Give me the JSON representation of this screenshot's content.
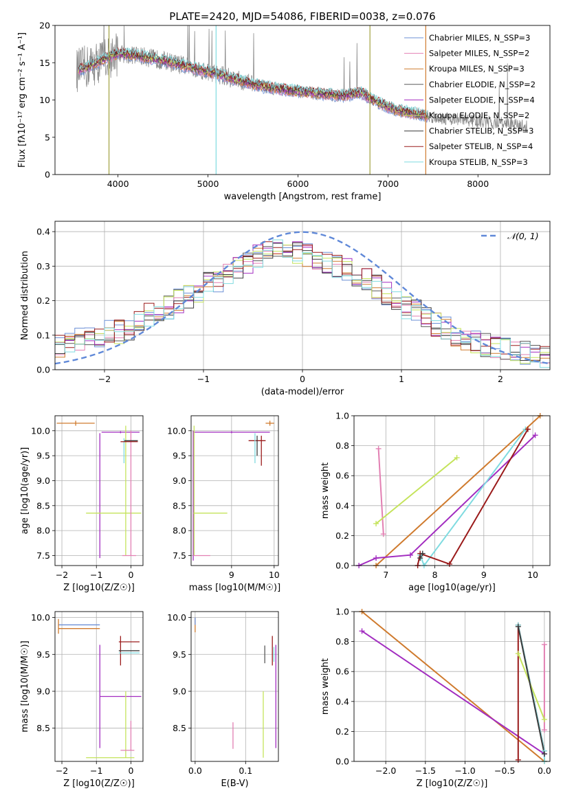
{
  "figure": {
    "title": "PLATE=2420, MJD=54086, FIBERID=0038, z=0.076"
  },
  "colors": {
    "chabrier_miles": "#6b8fd6",
    "salpeter_miles": "#e27fb2",
    "kroupa_miles": "#cf7a2d",
    "chabrier_elodie": "#5a5a5a",
    "salpeter_elodie": "#a22cc0",
    "kroupa_elodie": "#c4e35a",
    "chabrier_stelib": "#3a3a3a",
    "salpeter_stelib": "#9a1a1a",
    "kroupa_stelib": "#7fdbe0",
    "data_grey": "#8a8a8a",
    "gauss": "#5f88d8"
  },
  "chart_data": [
    {
      "id": "spectrum",
      "type": "line",
      "xlabel": "wavelength [Angstrom, rest frame]",
      "ylabel": "Flux [fλ10⁻¹⁷ erg cm⁻² s⁻¹ A⁻¹]",
      "xlim": [
        3300,
        8800
      ],
      "ylim": [
        0,
        20
      ],
      "xticks": [
        "4000",
        "5000",
        "6000",
        "7000",
        "8000"
      ],
      "yticks": [
        "0",
        "5",
        "10",
        "15",
        "20"
      ],
      "legend_position": "upper right",
      "legend": [
        "Chabrier MILES, N_SSP=3",
        "Salpeter MILES, N_SSP=2",
        "Kroupa MILES, N_SSP=3",
        "Chabrier ELODIE, N_SSP=2",
        "Salpeter ELODIE, N_SSP=4",
        "Kroupa ELODIE, N_SSP=2",
        "Chabrier STELIB, N_SSP=3",
        "Salpeter STELIB, N_SSP=4",
        "Kroupa STELIB, N_SSP=3"
      ],
      "continuum_x": [
        3550,
        3700,
        3850,
        4000,
        4200,
        4500,
        4800,
        5000,
        5300,
        5600,
        5900,
        6200,
        6500,
        6700,
        6900,
        7100,
        7300,
        7450
      ],
      "continuum_y": [
        14.0,
        14.6,
        15.5,
        16.2,
        16.0,
        15.3,
        14.4,
        13.8,
        12.8,
        11.8,
        11.3,
        10.9,
        10.6,
        11.0,
        9.6,
        8.6,
        8.2,
        7.8
      ],
      "data_extends_to": 8550
    },
    {
      "id": "residual_histogram",
      "type": "histogram",
      "xlabel": "(data-model)/error",
      "ylabel": "Normed distribution",
      "xlim": [
        -2.5,
        2.5
      ],
      "ylim": [
        0,
        0.43
      ],
      "xticks": [
        "−2",
        "−1",
        "0",
        "1",
        "2"
      ],
      "yticks": [
        "0.0",
        "0.1",
        "0.2",
        "0.3",
        "0.4"
      ],
      "legend": [
        "𝒩(0, 1)"
      ],
      "legend_position": "upper right",
      "bin_edges_range": [
        -2.5,
        2.5
      ],
      "n_bins": 50,
      "envelope_values": [
        0.07,
        0.08,
        0.09,
        0.09,
        0.1,
        0.11,
        0.11,
        0.12,
        0.14,
        0.16,
        0.17,
        0.18,
        0.2,
        0.21,
        0.23,
        0.25,
        0.26,
        0.28,
        0.3,
        0.31,
        0.33,
        0.34,
        0.35,
        0.34,
        0.34,
        0.33,
        0.32,
        0.31,
        0.3,
        0.29,
        0.27,
        0.26,
        0.24,
        0.22,
        0.2,
        0.18,
        0.17,
        0.15,
        0.13,
        0.12,
        0.1,
        0.09,
        0.08,
        0.07,
        0.07,
        0.06,
        0.06,
        0.05,
        0.05,
        0.04
      ],
      "gaussian": {
        "mean": 0,
        "sigma": 1
      }
    },
    {
      "id": "age_vs_Z",
      "type": "errorbar",
      "xlabel": "Z [log10(Z/Z☉)]",
      "ylabel": "age [log10(age/yr)]",
      "xlim": [
        -2.2,
        0.35
      ],
      "ylim": [
        7.3,
        10.3
      ],
      "xticks": [
        "−2",
        "−1",
        "0"
      ],
      "yticks": [
        "7.5",
        "8.0",
        "8.5",
        "9.0",
        "9.5",
        "10.0"
      ],
      "points": [
        {
          "series": "kroupa_miles",
          "x": -1.6,
          "y": 10.15,
          "xerr": 0.55,
          "yerr": 0.05
        },
        {
          "series": "salpeter_elodie",
          "x": -0.3,
          "y": 9.97,
          "xerr": 0.55,
          "yerr": 0.02
        },
        {
          "series": "salpeter_elodie",
          "x": -0.9,
          "y": 8.7,
          "xerr": 0.0,
          "yerr": 1.25
        },
        {
          "series": "kroupa_elodie",
          "x": -0.5,
          "y": 8.35,
          "xerr": 0.8,
          "yerr": 0.0
        },
        {
          "series": "kroupa_elodie",
          "x": -0.15,
          "y": 8.8,
          "xerr": 0.0,
          "yerr": 1.3
        },
        {
          "series": "salpeter_miles",
          "x": -0.05,
          "y": 7.5,
          "xerr": 0.2,
          "yerr": 0.0
        },
        {
          "series": "salpeter_miles",
          "x": 0.0,
          "y": 8.75,
          "xerr": 0.0,
          "yerr": 1.25
        },
        {
          "series": "chabrier_stelib",
          "x": 0.0,
          "y": 9.8,
          "xerr": 0.2,
          "yerr": 0.0
        },
        {
          "series": "kroupa_stelib",
          "x": -0.2,
          "y": 9.6,
          "xerr": 0.0,
          "yerr": 0.25
        },
        {
          "series": "salpeter_stelib",
          "x": -0.05,
          "y": 9.78,
          "xerr": 0.25,
          "yerr": 0.0
        }
      ]
    },
    {
      "id": "age_vs_mass",
      "type": "errorbar",
      "xlabel": "mass [log10(M/M☉)]",
      "ylabel": "",
      "xlim": [
        8.05,
        10.1
      ],
      "ylim": [
        7.3,
        10.3
      ],
      "xticks": [
        "9",
        "10"
      ],
      "yticks": [
        "7.5",
        "8.0",
        "8.5",
        "9.0",
        "9.5",
        "10.0"
      ],
      "points": [
        {
          "series": "salpeter_elodie",
          "x": 9.0,
          "y": 9.97,
          "xerr": 0.9,
          "yerr": 0.02
        },
        {
          "series": "salpeter_elodie",
          "x": 8.1,
          "y": 8.7,
          "xerr": 0.0,
          "yerr": 1.3
        },
        {
          "series": "kroupa_elodie",
          "x": 8.5,
          "y": 8.35,
          "xerr": 0.4,
          "yerr": 0.0
        },
        {
          "series": "kroupa_elodie",
          "x": 8.12,
          "y": 8.8,
          "xerr": 0.0,
          "yerr": 1.3
        },
        {
          "series": "salpeter_miles",
          "x": 8.3,
          "y": 7.5,
          "xerr": 0.2,
          "yerr": 0.0
        },
        {
          "series": "salpeter_stelib",
          "x": 9.6,
          "y": 9.8,
          "xerr": 0.2,
          "yerr": 0.0
        },
        {
          "series": "salpeter_stelib",
          "x": 9.7,
          "y": 9.6,
          "xerr": 0.0,
          "yerr": 0.3
        },
        {
          "series": "kroupa_stelib",
          "x": 9.55,
          "y": 9.65,
          "xerr": 0.0,
          "yerr": 0.3
        },
        {
          "series": "kroupa_miles",
          "x": 9.9,
          "y": 10.15,
          "xerr": 0.1,
          "yerr": 0.05
        },
        {
          "series": "chabrier_stelib",
          "x": 9.6,
          "y": 9.7,
          "xerr": 0.0,
          "yerr": 0.2
        }
      ]
    },
    {
      "id": "massweight_vs_age",
      "type": "line",
      "xlabel": "age  [log10(age/yr)]",
      "ylabel": "mass weight",
      "xlim": [
        6.35,
        10.35
      ],
      "ylim": [
        0,
        1
      ],
      "xticks": [
        "7",
        "8",
        "9",
        "10"
      ],
      "yticks": [
        "0.0",
        "0.2",
        "0.4",
        "0.6",
        "0.8",
        "1.0"
      ],
      "series": [
        {
          "series": "salpeter_miles",
          "x": [
            6.85,
            6.95
          ],
          "y": [
            0.78,
            0.21
          ]
        },
        {
          "series": "kroupa_elodie",
          "x": [
            6.8,
            8.45
          ],
          "y": [
            0.28,
            0.72
          ]
        },
        {
          "series": "kroupa_miles",
          "x": [
            6.8,
            10.15
          ],
          "y": [
            0.0,
            1.0
          ]
        },
        {
          "series": "salpeter_elodie",
          "x": [
            6.45,
            6.8,
            7.5,
            10.05
          ],
          "y": [
            0.0,
            0.05,
            0.07,
            0.87
          ]
        },
        {
          "series": "kroupa_stelib",
          "x": [
            7.7,
            7.78,
            9.85
          ],
          "y": [
            0.07,
            0.0,
            0.91
          ]
        },
        {
          "series": "salpeter_stelib",
          "x": [
            7.65,
            7.7,
            8.3,
            9.9
          ],
          "y": [
            0.0,
            0.08,
            0.01,
            0.91
          ]
        },
        {
          "series": "chabrier_stelib",
          "x": [
            7.7,
            7.75
          ],
          "y": [
            0.05,
            0.08
          ]
        }
      ]
    },
    {
      "id": "mass_vs_Z",
      "type": "errorbar",
      "xlabel": "Z [log10(Z/Z☉)]",
      "ylabel": "mass [log10(M/M☉)]",
      "xlim": [
        -2.2,
        0.35
      ],
      "ylim": [
        8.05,
        10.08
      ],
      "xticks": [
        "−2",
        "−1",
        "0"
      ],
      "yticks": [
        "8.5",
        "9.0",
        "9.5",
        "10.0"
      ],
      "points": [
        {
          "series": "chabrier_miles",
          "x": -1.5,
          "y": 9.9,
          "xerr": 0.6,
          "yerr": 0.0
        },
        {
          "series": "kroupa_miles",
          "x": -1.5,
          "y": 9.85,
          "xerr": 0.6,
          "yerr": 0.0
        },
        {
          "series": "kroupa_miles",
          "x": -2.1,
          "y": 9.88,
          "xerr": 0.0,
          "yerr": 0.1
        },
        {
          "series": "salpeter_elodie",
          "x": -0.3,
          "y": 8.93,
          "xerr": 0.6,
          "yerr": 0.0
        },
        {
          "series": "salpeter_elodie",
          "x": -0.9,
          "y": 8.93,
          "xerr": 0.0,
          "yerr": 0.7
        },
        {
          "series": "kroupa_elodie",
          "x": -0.6,
          "y": 8.1,
          "xerr": 0.7,
          "yerr": 0.0
        },
        {
          "series": "kroupa_elodie",
          "x": -0.15,
          "y": 8.55,
          "xerr": 0.0,
          "yerr": 0.45
        },
        {
          "series": "salpeter_miles",
          "x": -0.1,
          "y": 8.2,
          "xerr": 0.2,
          "yerr": 0.0
        },
        {
          "series": "salpeter_miles",
          "x": 0.0,
          "y": 8.4,
          "xerr": 0.0,
          "yerr": 0.2
        },
        {
          "series": "salpeter_stelib",
          "x": -0.05,
          "y": 9.67,
          "xerr": 0.3,
          "yerr": 0.0
        },
        {
          "series": "salpeter_stelib",
          "x": -0.3,
          "y": 9.55,
          "xerr": 0.0,
          "yerr": 0.2
        },
        {
          "series": "chabrier_stelib",
          "x": -0.05,
          "y": 9.55,
          "xerr": 0.3,
          "yerr": 0.0
        },
        {
          "series": "kroupa_stelib",
          "x": -0.05,
          "y": 9.52,
          "xerr": 0.3,
          "yerr": 0.0
        }
      ]
    },
    {
      "id": "mass_vs_ebv",
      "type": "errorbar",
      "xlabel": "E(B-V)",
      "ylabel": "",
      "xlim": [
        -0.008,
        0.165
      ],
      "ylim": [
        8.05,
        10.08
      ],
      "xticks": [
        "0.0",
        "0.1"
      ],
      "yticks": [
        "8.5",
        "9.0",
        "9.5",
        "10.0"
      ],
      "points": [
        {
          "series": "kroupa_miles",
          "x": 0.0,
          "y": 9.9,
          "xerr": 0.0,
          "yerr": 0.1
        },
        {
          "series": "chabrier_miles",
          "x": 0.0,
          "y": 9.95,
          "xerr": 0.0,
          "yerr": 0.05
        },
        {
          "series": "salpeter_miles",
          "x": 0.075,
          "y": 8.4,
          "xerr": 0.0,
          "yerr": 0.18
        },
        {
          "series": "kroupa_elodie",
          "x": 0.135,
          "y": 8.55,
          "xerr": 0.0,
          "yerr": 0.45
        },
        {
          "series": "chabrier_elodie",
          "x": 0.138,
          "y": 9.5,
          "xerr": 0.0,
          "yerr": 0.12
        },
        {
          "series": "salpeter_stelib",
          "x": 0.153,
          "y": 9.55,
          "xerr": 0.0,
          "yerr": 0.2
        },
        {
          "series": "kroupa_stelib",
          "x": 0.156,
          "y": 9.5,
          "xerr": 0.0,
          "yerr": 0.1
        },
        {
          "series": "salpeter_elodie",
          "x": 0.16,
          "y": 8.93,
          "xerr": 0.0,
          "yerr": 0.7
        }
      ]
    },
    {
      "id": "massweight_vs_Z",
      "type": "line",
      "xlabel": "Z [log10(Z/Z☉)]",
      "ylabel": "mass weight",
      "xlim": [
        -2.4,
        0.07
      ],
      "ylim": [
        0,
        1
      ],
      "xticks": [
        "−2.0",
        "−1.5",
        "−1.0",
        "−0.5",
        "0.0"
      ],
      "yticks": [
        "0.0",
        "0.2",
        "0.4",
        "0.6",
        "0.8",
        "1.0"
      ],
      "series": [
        {
          "series": "kroupa_miles",
          "x": [
            -2.3,
            0.0
          ],
          "y": [
            1.0,
            0.0
          ]
        },
        {
          "series": "salpeter_elodie",
          "x": [
            -2.3,
            0.0
          ],
          "y": [
            0.87,
            0.05
          ]
        },
        {
          "series": "salpeter_stelib",
          "x": [
            -0.33,
            -0.33,
            0.0
          ],
          "y": [
            0.01,
            0.91,
            0.07
          ]
        },
        {
          "series": "kroupa_stelib",
          "x": [
            -0.33,
            0.0,
            0.0
          ],
          "y": [
            0.91,
            0.07,
            0.0
          ]
        },
        {
          "series": "kroupa_elodie",
          "x": [
            -0.33,
            0.0
          ],
          "y": [
            0.72,
            0.28
          ]
        },
        {
          "series": "salpeter_miles",
          "x": [
            0.0,
            0.0
          ],
          "y": [
            0.78,
            0.21
          ]
        },
        {
          "series": "chabrier_stelib",
          "x": [
            -0.33,
            0.0
          ],
          "y": [
            0.9,
            0.05
          ]
        }
      ]
    }
  ]
}
